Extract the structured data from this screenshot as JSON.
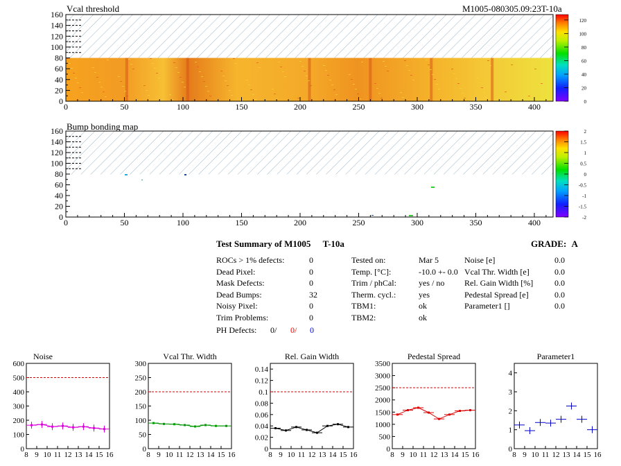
{
  "top_map": {
    "title": "Vcal threshold",
    "module_id": "M1005-080305.09:23T-10a",
    "y_ticks": [
      "0",
      "20",
      "40",
      "60",
      "80",
      "100",
      "120",
      "140",
      "160"
    ],
    "x_ticks": [
      "0",
      "50",
      "100",
      "150",
      "200",
      "250",
      "300",
      "350",
      "400"
    ],
    "colorbar_ticks": [
      "0",
      "20",
      "40",
      "60",
      "80",
      "100",
      "120"
    ]
  },
  "bottom_map": {
    "title": "Bump bonding map",
    "y_ticks": [
      "0",
      "20",
      "40",
      "60",
      "80",
      "100",
      "120",
      "140",
      "160"
    ],
    "x_ticks": [
      "0",
      "50",
      "100",
      "150",
      "200",
      "250",
      "300",
      "350",
      "400"
    ],
    "colorbar_ticks": [
      "-2",
      "-1.5",
      "-1",
      "-0.5",
      "0",
      "0.5",
      "1",
      "1.5",
      "2"
    ]
  },
  "summary": {
    "title": "Test Summary of M1005",
    "module_type": "T-10a",
    "grade_label": "GRADE:",
    "grade_value": "A",
    "left_rows": [
      {
        "label": "ROCs > 1% defects:",
        "value": "0"
      },
      {
        "label": "Dead Pixel:",
        "value": "0"
      },
      {
        "label": "Mask Defects:",
        "value": "0"
      },
      {
        "label": "Dead Bumps:",
        "value": "32"
      },
      {
        "label": "Noisy Pixel:",
        "value": "0"
      },
      {
        "label": "Trim Problems:",
        "value": "0"
      }
    ],
    "ph_label": "PH Defects:",
    "ph_values": [
      "0/",
      "0/",
      "0"
    ],
    "mid_rows": [
      {
        "label": "Tested on:",
        "value": "Mar 5"
      },
      {
        "label": "Temp. [°C]:",
        "value": "-10.0 +- 0.0"
      },
      {
        "label": "Trim / phCal:",
        "value": "yes / no"
      },
      {
        "label": "Therm. cycl.:",
        "value": "yes"
      },
      {
        "label": "TBM1:",
        "value": "ok"
      },
      {
        "label": "TBM2:",
        "value": "ok"
      }
    ],
    "right_rows": [
      {
        "label": "Noise [e]",
        "value": "0.0"
      },
      {
        "label": "Vcal Thr. Width [e]",
        "value": "0.0"
      },
      {
        "label": "Rel. Gain Width [%]",
        "value": "0.0"
      },
      {
        "label": "Pedestal Spread [e]",
        "value": "0.0"
      },
      {
        "label": "Parameter1 []",
        "value": "0.0"
      }
    ]
  },
  "colors": {
    "noise": "#dd00dd",
    "vcal": "#009900",
    "gain": "#000000",
    "pedestal": "#dd0000",
    "param1": "#0000cc",
    "limit": "#cc0000"
  },
  "chart_data": [
    {
      "type": "line",
      "title": "Noise",
      "x": [
        8.5,
        9.5,
        10.5,
        11.5,
        12.5,
        13.5,
        14.5,
        15.5
      ],
      "values": [
        165,
        170,
        155,
        160,
        150,
        155,
        145,
        138
      ],
      "xlim": [
        8,
        16
      ],
      "ylim": [
        0,
        600
      ],
      "y_ticks": [
        0,
        100,
        200,
        300,
        400,
        500,
        600
      ],
      "x_ticks": [
        8,
        9,
        10,
        11,
        12,
        13,
        14,
        15,
        16
      ],
      "limit": 500
    },
    {
      "type": "line",
      "title": "Vcal Thr. Width",
      "x": [
        8.5,
        9.5,
        10.5,
        11.5,
        12.5,
        13.5,
        14.5,
        15.5
      ],
      "values": [
        90,
        87,
        86,
        83,
        78,
        83,
        80,
        80
      ],
      "xlim": [
        8,
        16
      ],
      "ylim": [
        0,
        300
      ],
      "y_ticks": [
        0,
        50,
        100,
        150,
        200,
        250,
        300
      ],
      "x_ticks": [
        8,
        9,
        10,
        11,
        12,
        13,
        14,
        15,
        16
      ],
      "limit": 200
    },
    {
      "type": "line",
      "title": "Rel. Gain Width",
      "x": [
        8.5,
        9.5,
        10.5,
        11.5,
        12.5,
        13.5,
        14.5,
        15.5
      ],
      "values": [
        0.036,
        0.032,
        0.038,
        0.033,
        0.028,
        0.04,
        0.043,
        0.038
      ],
      "xlim": [
        8,
        16
      ],
      "ylim": [
        0,
        0.15
      ],
      "y_ticks": [
        0,
        0.02,
        0.04,
        0.06,
        0.08,
        0.1,
        0.12,
        0.14
      ],
      "x_ticks": [
        8,
        9,
        10,
        11,
        12,
        13,
        14,
        15,
        16
      ],
      "limit": 0.1
    },
    {
      "type": "line",
      "title": "Pedestal Spread",
      "x": [
        8.5,
        9.5,
        10.5,
        11.5,
        12.5,
        13.5,
        14.5,
        15.5
      ],
      "values": [
        1400,
        1580,
        1680,
        1480,
        1220,
        1400,
        1550,
        1580
      ],
      "xlim": [
        8,
        16
      ],
      "ylim": [
        0,
        3500
      ],
      "y_ticks": [
        0,
        500,
        1000,
        1500,
        2000,
        2500,
        3000,
        3500
      ],
      "x_ticks": [
        8,
        9,
        10,
        11,
        12,
        13,
        14,
        15,
        16
      ],
      "limit": 2500
    },
    {
      "type": "scatter",
      "title": "Parameter1",
      "x": [
        8.5,
        9.5,
        10.5,
        11.5,
        12.5,
        13.5,
        14.5,
        15.5
      ],
      "values": [
        1.25,
        0.95,
        1.38,
        1.35,
        1.55,
        2.25,
        1.55,
        1.0
      ],
      "xlim": [
        8,
        16
      ],
      "ylim": [
        0,
        4.5
      ],
      "y_ticks": [
        0,
        1,
        2,
        3,
        4
      ],
      "x_ticks": [
        8,
        9,
        10,
        11,
        12,
        13,
        14,
        15,
        16
      ]
    }
  ]
}
